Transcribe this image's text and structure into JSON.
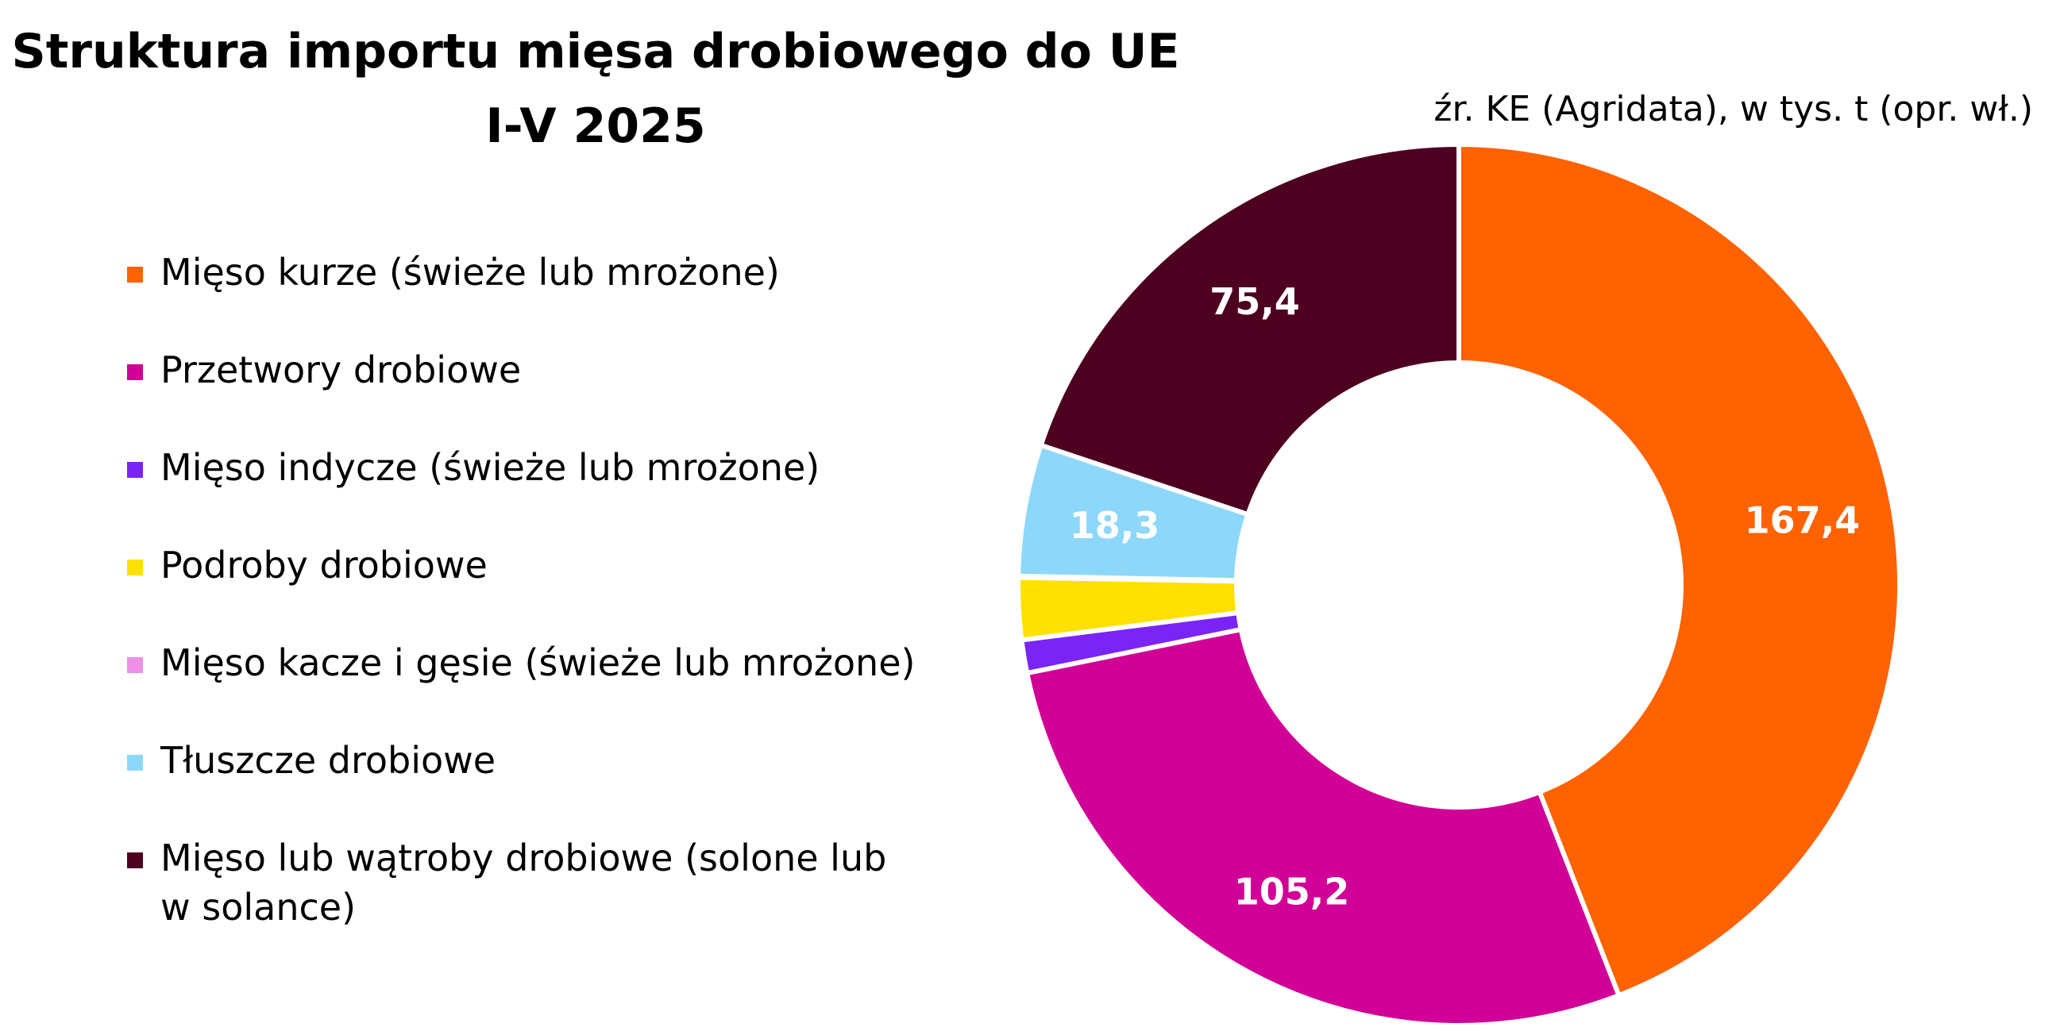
{
  "chart_data": {
    "type": "pie",
    "subtype": "donut",
    "title_lines": [
      "Struktura importu mięsa drobiowego do UE",
      "I-V 2025"
    ],
    "source": "źr. KE (Agridata), w tys. t (opr. wł.)",
    "legend_position": "left",
    "categories": [
      "Mięso kurze (świeże lub mrożone)",
      "Przetwory drobiowe",
      "Mięso indycze (świeże lub mrożone)",
      "Podroby drobiowe",
      "Mięso kacze i gęsie (świeże lub mrożone)",
      "Tłuszcze drobiowe",
      "Mięso lub wątroby drobiowe (solone lub w solance)"
    ],
    "legend_lines": [
      [
        "Mięso kurze (świeże lub mrożone)"
      ],
      [
        "Przetwory drobiowe"
      ],
      [
        "Mięso indycze (świeże lub mrożone)"
      ],
      [
        "Podroby drobiowe"
      ],
      [
        "Mięso kacze i gęsie (świeże lub mrożone)"
      ],
      [
        "Tłuszcze drobiowe"
      ],
      [
        "Mięso lub wątroby drobiowe (solone lub",
        "w solance)"
      ]
    ],
    "values": [
      167.4,
      105.2,
      4.6,
      8.6,
      0.2,
      18.3,
      75.4
    ],
    "data_labels": [
      "167,4",
      "105,2",
      "",
      "",
      "",
      "18,3",
      "75,4"
    ],
    "colors": [
      "#FF6200",
      "#D10096",
      "#7A24F5",
      "#FFE000",
      "#EE90E6",
      "#8DD8FA",
      "#4D0020"
    ]
  }
}
